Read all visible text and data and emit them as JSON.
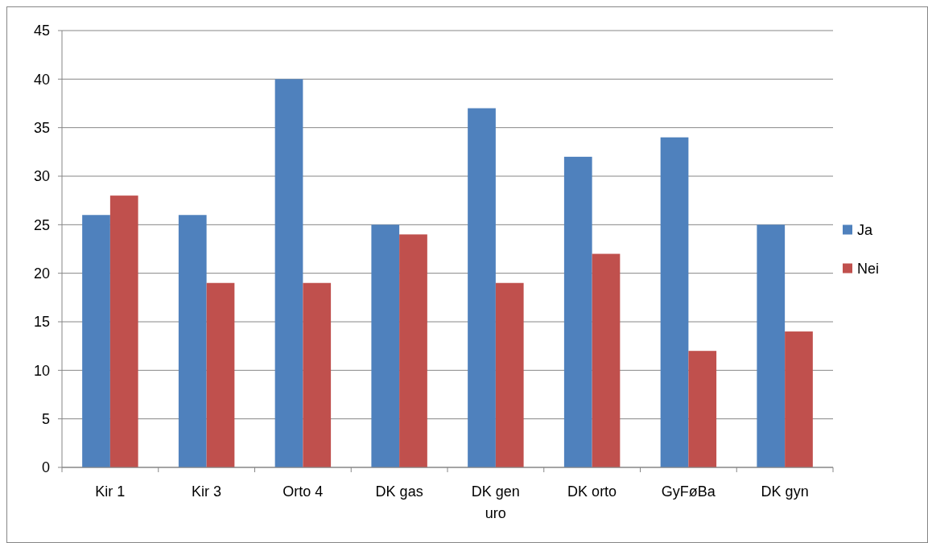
{
  "chart_data": {
    "type": "bar",
    "categories": [
      "Kir 1",
      "Kir 3",
      "Orto 4",
      "DK gas",
      "DK gen uro",
      "DK orto",
      "GyFøBa",
      "DK gyn"
    ],
    "series": [
      {
        "name": "Ja",
        "color": "#4f81bd",
        "values": [
          26,
          26,
          40,
          25,
          37,
          32,
          34,
          25
        ]
      },
      {
        "name": "Nei",
        "color": "#c0504d",
        "values": [
          28,
          19,
          19,
          24,
          19,
          22,
          12,
          14
        ]
      }
    ],
    "ylim": [
      0,
      45
    ],
    "yticks": [
      0,
      5,
      10,
      15,
      20,
      25,
      30,
      35,
      40,
      45
    ],
    "grid": "y",
    "legend": "right"
  }
}
